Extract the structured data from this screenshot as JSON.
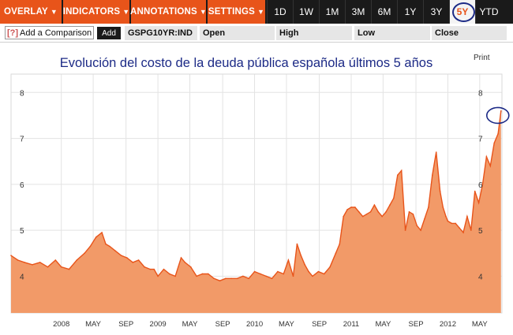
{
  "toolbar": {
    "menus": [
      {
        "label": "OVERLAY"
      },
      {
        "label": "INDICATORS"
      },
      {
        "label": "ANNOTATIONS"
      },
      {
        "label": "SETTINGS"
      }
    ],
    "ranges": [
      {
        "label": "1D",
        "active": false
      },
      {
        "label": "1W",
        "active": false
      },
      {
        "label": "1M",
        "active": false
      },
      {
        "label": "3M",
        "active": false
      },
      {
        "label": "6M",
        "active": false
      },
      {
        "label": "1Y",
        "active": false
      },
      {
        "label": "3Y",
        "active": false
      },
      {
        "label": "5Y",
        "active": true
      },
      {
        "label": "YTD",
        "active": false
      }
    ]
  },
  "subbar": {
    "add_comparison_q": "[?]",
    "add_comparison_label": "Add a Comparison",
    "add_button": "Add",
    "ticker": "GSPG10YR:IND",
    "open_label": "Open",
    "high_label": "High",
    "low_label": "Low",
    "close_label": "Close"
  },
  "print_label": "Print",
  "colors": {
    "accent": "#e8541a",
    "area_fill": "#f29a68",
    "area_line": "#e8541a",
    "annotation_circle": "#1c2a86",
    "title": "#1c2a86"
  },
  "chart_data": {
    "type": "area",
    "title": "Evolución del costo de la deuda pública española últimos 5 años",
    "xlabel": "",
    "ylabel": "",
    "ylim": [
      3.2,
      8.4
    ],
    "xlim": [
      2007.48,
      2012.56
    ],
    "y_ticks": [
      4,
      5,
      6,
      7,
      8
    ],
    "x_ticks": [
      {
        "label": "2008",
        "x": 2008.0
      },
      {
        "label": "MAY",
        "x": 2008.33
      },
      {
        "label": "SEP",
        "x": 2008.67
      },
      {
        "label": "2009",
        "x": 2009.0
      },
      {
        "label": "MAY",
        "x": 2009.33
      },
      {
        "label": "SEP",
        "x": 2009.67
      },
      {
        "label": "2010",
        "x": 2010.0
      },
      {
        "label": "MAY",
        "x": 2010.33
      },
      {
        "label": "SEP",
        "x": 2010.67
      },
      {
        "label": "2011",
        "x": 2011.0
      },
      {
        "label": "MAY",
        "x": 2011.33
      },
      {
        "label": "SEP",
        "x": 2011.67
      },
      {
        "label": "2012",
        "x": 2012.0
      },
      {
        "label": "MAY",
        "x": 2012.33
      }
    ],
    "grid": true,
    "series": [
      {
        "x": [
          2007.48,
          2007.55,
          2007.62,
          2007.7,
          2007.78,
          2007.86,
          2007.94,
          2008.0,
          2008.08,
          2008.16,
          2008.24,
          2008.3,
          2008.36,
          2008.42,
          2008.46,
          2008.5,
          2008.56,
          2008.62,
          2008.68,
          2008.74,
          2008.8,
          2008.86,
          2008.92,
          2008.96,
          2009.0,
          2009.06,
          2009.12,
          2009.18,
          2009.24,
          2009.28,
          2009.34,
          2009.4,
          2009.46,
          2009.52,
          2009.58,
          2009.64,
          2009.7,
          2009.76,
          2009.82,
          2009.88,
          2009.94,
          2010.0,
          2010.06,
          2010.12,
          2010.18,
          2010.24,
          2010.3,
          2010.35,
          2010.4,
          2010.44,
          2010.48,
          2010.52,
          2010.56,
          2010.6,
          2010.66,
          2010.72,
          2010.78,
          2010.84,
          2010.88,
          2010.92,
          2010.96,
          2011.0,
          2011.04,
          2011.08,
          2011.12,
          2011.16,
          2011.2,
          2011.24,
          2011.28,
          2011.32,
          2011.36,
          2011.4,
          2011.44,
          2011.48,
          2011.52,
          2011.56,
          2011.6,
          2011.64,
          2011.68,
          2011.72,
          2011.76,
          2011.8,
          2011.84,
          2011.88,
          2011.92,
          2011.95,
          2011.98,
          2012.0,
          2012.04,
          2012.08,
          2012.12,
          2012.16,
          2012.2,
          2012.24,
          2012.28,
          2012.32,
          2012.36,
          2012.4,
          2012.44,
          2012.48,
          2012.52,
          2012.55
        ],
        "values": [
          4.45,
          4.35,
          4.3,
          4.25,
          4.3,
          4.2,
          4.35,
          4.2,
          4.15,
          4.35,
          4.5,
          4.65,
          4.85,
          4.95,
          4.7,
          4.65,
          4.55,
          4.45,
          4.4,
          4.3,
          4.35,
          4.2,
          4.15,
          4.15,
          4.0,
          4.15,
          4.05,
          4.0,
          4.4,
          4.3,
          4.2,
          4.0,
          4.05,
          4.05,
          3.95,
          3.9,
          3.95,
          3.95,
          3.95,
          4.0,
          3.95,
          4.1,
          4.05,
          4.0,
          3.95,
          4.1,
          4.05,
          4.35,
          4.0,
          4.7,
          4.45,
          4.25,
          4.1,
          4.0,
          4.1,
          4.05,
          4.2,
          4.5,
          4.7,
          5.3,
          5.45,
          5.5,
          5.5,
          5.4,
          5.3,
          5.35,
          5.4,
          5.55,
          5.4,
          5.3,
          5.4,
          5.55,
          5.7,
          6.2,
          6.3,
          5.0,
          5.4,
          5.35,
          5.1,
          5.0,
          5.25,
          5.5,
          6.2,
          6.7,
          5.85,
          5.5,
          5.3,
          5.2,
          5.15,
          5.15,
          5.05,
          4.95,
          5.3,
          5.0,
          5.85,
          5.6,
          6.0,
          6.6,
          6.4,
          6.9,
          7.1,
          7.6
        ]
      }
    ],
    "annotations": [
      {
        "type": "circle",
        "x": 2012.55,
        "y": 7.5
      }
    ]
  }
}
